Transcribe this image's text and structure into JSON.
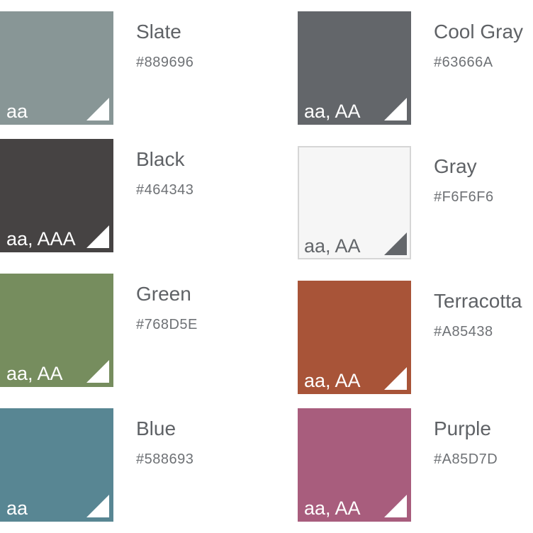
{
  "swatches": [
    {
      "name": "Slate",
      "hex_label": "#889696",
      "color": "#889696",
      "contrast": "aa",
      "text_color": "#ffffff",
      "icon_color": "#ffffff",
      "bordered": false
    },
    {
      "name": "Cool Gray",
      "hex_label": "#63666A",
      "color": "#63666A",
      "contrast": "aa, AA",
      "text_color": "#ffffff",
      "icon_color": "#ffffff",
      "bordered": false
    },
    {
      "name": "Black",
      "hex_label": "#464343",
      "color": "#464343",
      "contrast": "aa, AAA",
      "text_color": "#ffffff",
      "icon_color": "#ffffff",
      "bordered": false
    },
    {
      "name": "Gray",
      "hex_label": "#F6F6F6",
      "color": "#F6F6F6",
      "contrast": "aa, AA",
      "text_color": "#63666A",
      "icon_color": "#63666A",
      "bordered": true
    },
    {
      "name": "Green",
      "hex_label": "#768D5E",
      "color": "#768D5E",
      "contrast": "aa, AA",
      "text_color": "#ffffff",
      "icon_color": "#ffffff",
      "bordered": false
    },
    {
      "name": "Terracotta",
      "hex_label": "#A85438",
      "color": "#A85438",
      "contrast": "aa, AA",
      "text_color": "#ffffff",
      "icon_color": "#ffffff",
      "bordered": false
    },
    {
      "name": "Blue",
      "hex_label": "#588693",
      "color": "#588693",
      "contrast": "aa",
      "text_color": "#ffffff",
      "icon_color": "#ffffff",
      "bordered": false
    },
    {
      "name": "Purple",
      "hex_label": "#A85D7D",
      "color": "#A85D7D",
      "contrast": "aa, AA",
      "text_color": "#ffffff",
      "icon_color": "#ffffff",
      "bordered": false
    }
  ]
}
